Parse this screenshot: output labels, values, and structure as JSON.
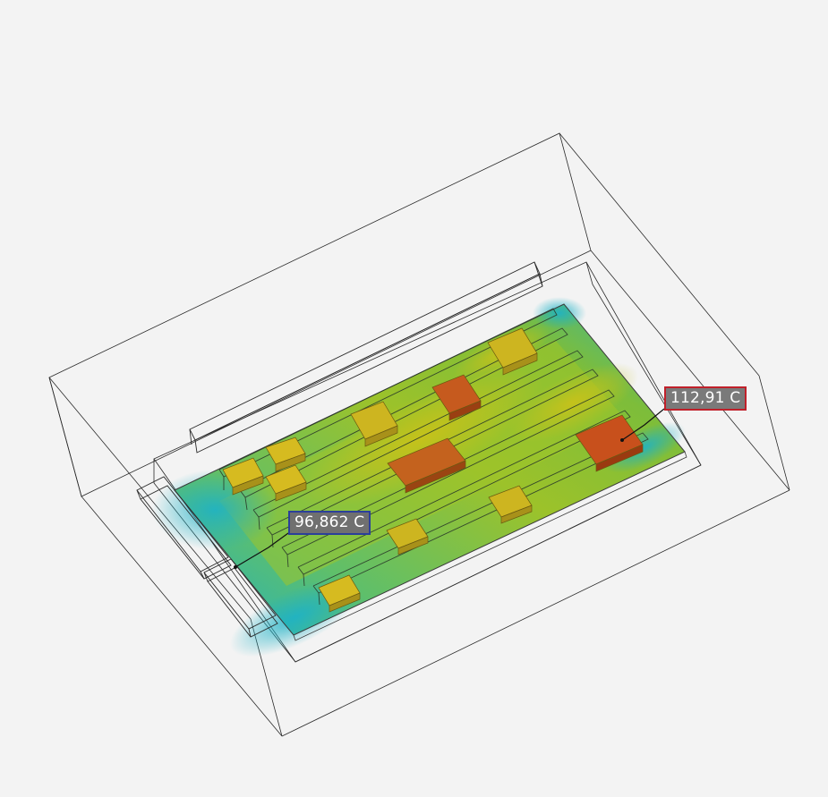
{
  "probes": {
    "min": {
      "label": "96,862 C",
      "border_color": "#2b3f9a"
    },
    "max": {
      "label": "112,91 C",
      "border_color": "#c0202a"
    }
  },
  "colors": {
    "background": "#f3f3f3",
    "wireframe": "#2a2a2a",
    "board_cool": "#1fb3c8",
    "board_mid": "#7fbf2a",
    "board_warm": "#c8c41a",
    "component_hot": "#c9501c",
    "component_warm": "#d7bd22"
  },
  "icons": {
    "min_probe": "probe-marker-icon",
    "max_probe": "probe-marker-icon"
  }
}
